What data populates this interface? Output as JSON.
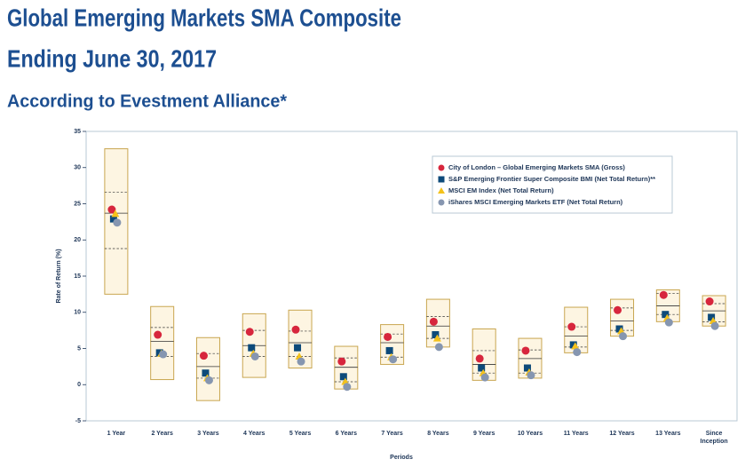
{
  "chart_data": {
    "type": "floating_box",
    "title": [
      "Global Emerging Markets SMA Composite",
      "Ending June 30, 2017"
    ],
    "subtitle": "According to Evestment Alliance*",
    "x_label": "Periods",
    "y_label": "Rate of Return (%)",
    "categories": [
      "1 Year",
      "2 Years",
      "3 Years",
      "4 Years",
      "5 Years",
      "6 Years",
      "7 Years",
      "8 Years",
      "9 Years",
      "10 Years",
      "11 Years",
      "12 Years",
      "13 Years",
      "Since Inception"
    ],
    "ylim": [
      -5,
      35
    ],
    "yticks": [
      -5,
      0,
      5,
      10,
      15,
      20,
      25,
      30,
      35
    ],
    "box": {
      "fill": "#fdf5e2",
      "stroke": "#c9a650",
      "high": [
        32.6,
        10.8,
        6.5,
        9.8,
        10.3,
        5.3,
        8.3,
        11.8,
        7.7,
        6.4,
        10.7,
        11.8,
        13.1,
        12.3
      ],
      "upper_quartile": [
        26.6,
        7.9,
        4.3,
        7.5,
        7.4,
        3.7,
        7.0,
        9.4,
        4.7,
        4.8,
        8.0,
        10.6,
        12.6,
        11.2
      ],
      "median": [
        23.7,
        6.0,
        2.5,
        5.4,
        5.8,
        2.4,
        5.8,
        8.1,
        2.8,
        3.6,
        6.7,
        8.8,
        10.9,
        10.2
      ],
      "lower_quartile": [
        18.8,
        3.9,
        0.9,
        3.9,
        3.9,
        0.4,
        3.8,
        6.4,
        1.6,
        1.6,
        5.2,
        7.5,
        9.7,
        8.7
      ],
      "low": [
        12.5,
        0.7,
        -2.2,
        1.0,
        2.3,
        -0.6,
        2.8,
        5.2,
        0.6,
        0.9,
        4.4,
        6.7,
        8.7,
        8.1
      ]
    },
    "series": [
      {
        "name": "City of London – Global Emerging Markets SMA (Gross)",
        "color": "#d7263d",
        "marker": "circle",
        "values": [
          24.2,
          6.9,
          4.0,
          7.3,
          7.6,
          3.2,
          6.6,
          8.7,
          3.6,
          4.7,
          8.0,
          10.3,
          12.4,
          11.5
        ]
      },
      {
        "name": "S&P Emerging Frontier Super Composite BMI (Net Total Return)**",
        "color": "#0d4a7a",
        "marker": "square",
        "values": [
          22.9,
          4.4,
          1.6,
          5.1,
          5.1,
          1.1,
          4.7,
          6.9,
          2.3,
          2.3,
          5.5,
          7.7,
          9.7,
          9.3
        ]
      },
      {
        "name": "MSCI EM Index (Net Total Return)",
        "color": "#f4c21b",
        "marker": "triangle",
        "values": [
          23.6,
          4.3,
          0.9,
          4.3,
          3.9,
          0.4,
          3.8,
          6.4,
          1.6,
          1.7,
          5.3,
          7.4,
          9.2,
          8.8
        ]
      },
      {
        "name": "iShares MSCI Emerging Markets ETF (Net Total Return)",
        "color": "#8696b0",
        "marker": "circle",
        "values": [
          22.4,
          4.2,
          0.6,
          3.9,
          3.2,
          -0.3,
          3.5,
          5.2,
          1.0,
          1.3,
          4.5,
          6.7,
          8.6,
          8.1
        ]
      }
    ]
  }
}
